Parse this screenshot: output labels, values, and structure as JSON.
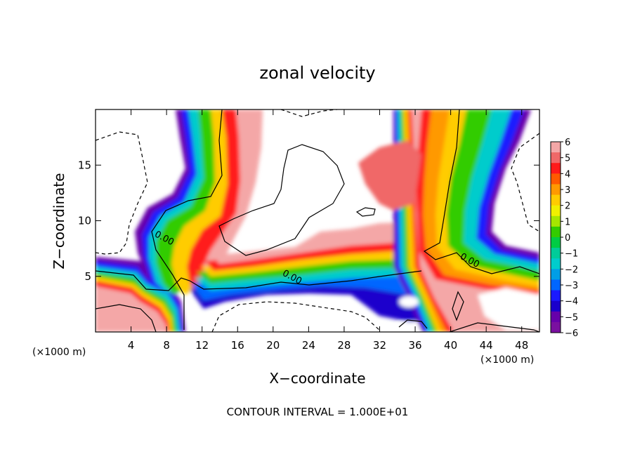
{
  "chart_data": {
    "type": "heatmap",
    "title": "zonal velocity",
    "xlabel": "X−coordinate",
    "ylabel": "Z−coordinate",
    "x_unit_label_left": "(×1000 m)",
    "x_unit_label_right": "(×1000 m)",
    "footer": "CONTOUR INTERVAL = 1.000E+01",
    "xlim": [
      0,
      50
    ],
    "ylim": [
      0,
      20
    ],
    "x_ticks": [
      4,
      8,
      12,
      16,
      20,
      24,
      28,
      32,
      36,
      40,
      44,
      48
    ],
    "y_ticks": [
      5,
      10,
      15
    ],
    "colorbar": {
      "range": [
        -6,
        6
      ],
      "ticks": [
        "6",
        "5",
        "4",
        "3",
        "2",
        "1",
        "0",
        "−1",
        "−2",
        "−3",
        "−4",
        "−5",
        "−6"
      ],
      "colors": [
        "#f4a7a7",
        "#f06868",
        "#ff1a1a",
        "#ff5a00",
        "#ff9900",
        "#ffcc00",
        "#f0f000",
        "#a6e600",
        "#33cc00",
        "#00cc44",
        "#00cc99",
        "#00cccc",
        "#009ee6",
        "#0066ff",
        "#1a1aff",
        "#1a00cc",
        "#6600aa",
        "#7a10a0"
      ]
    },
    "contour_labels": [
      {
        "x": 7.6,
        "y": 8.2,
        "text": "0.00"
      },
      {
        "x": 22.0,
        "y": 4.7,
        "text": "0.00"
      },
      {
        "x": 42.0,
        "y": 6.2,
        "text": "0.00"
      }
    ]
  }
}
